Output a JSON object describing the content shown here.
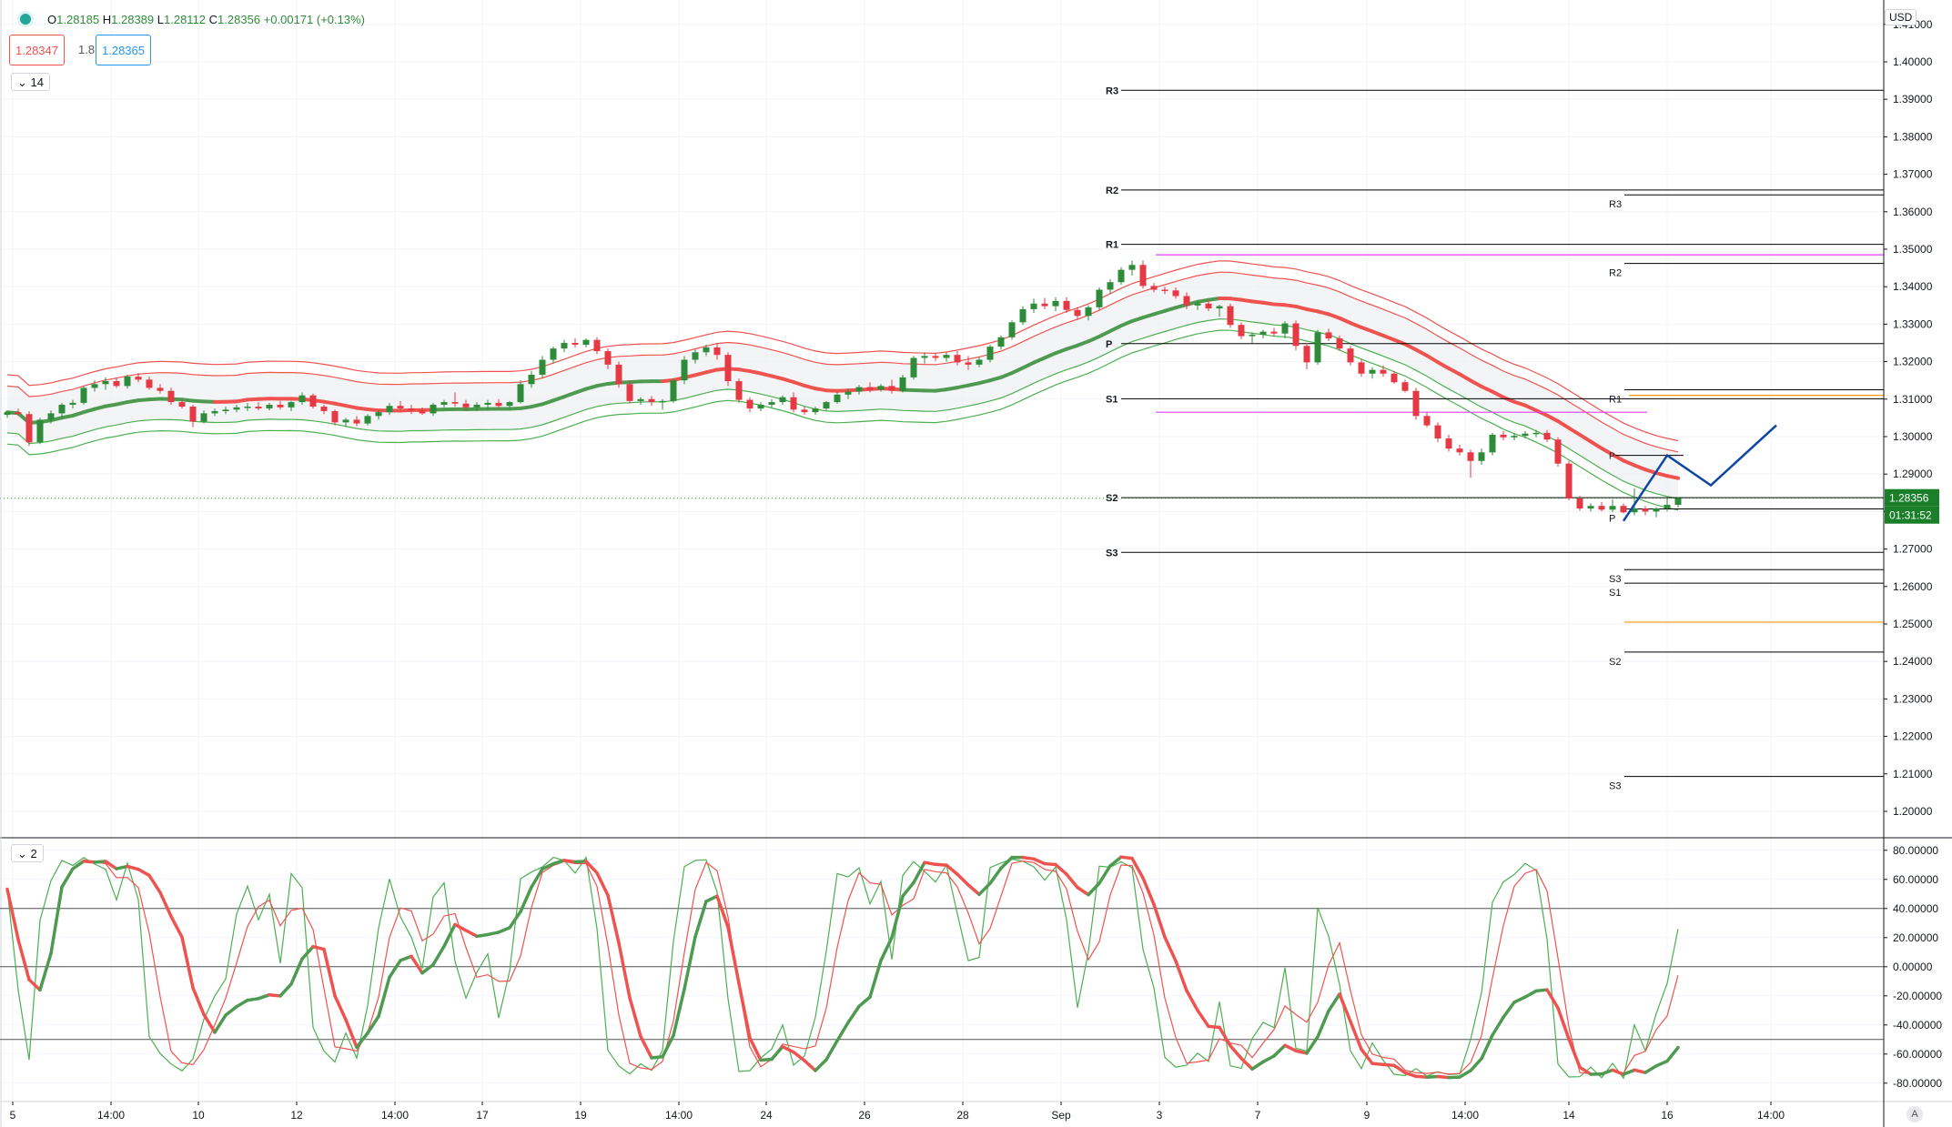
{
  "header": {
    "open_label": "O",
    "open": "1.28185",
    "high_label": "H",
    "high": "1.28389",
    "low_label": "L",
    "low": "1.28112",
    "close_label": "C",
    "close": "1.28356",
    "change": "+0.00171 (+0.13%)"
  },
  "trade": {
    "sell": "1.28347",
    "spread": "1.8",
    "buy": "1.28365"
  },
  "panes": {
    "main_tag": "14",
    "osc_tag": "2"
  },
  "currency": "USD",
  "auto_label": "A",
  "colors": {
    "up": "#2e8b3a",
    "down": "#e53945",
    "ma_green": "#4e9a50",
    "ma_red": "#ef5350",
    "env_red": "#ef5350",
    "env_green": "#4caf50",
    "pivot": "#000000",
    "magenta": "#e040fb",
    "orange": "#ff9800",
    "projection": "#0d47a1",
    "last_price_bg": "#1b7f2a"
  },
  "chart_data": {
    "type": "candlestick",
    "price_axis": {
      "range": [
        1.1932,
        1.4165
      ],
      "ticks": [
        "1.20000",
        "1.21000",
        "1.22000",
        "1.23000",
        "1.24000",
        "1.25000",
        "1.26000",
        "1.27000",
        "1.28000",
        "1.29000",
        "1.30000",
        "1.31000",
        "1.32000",
        "1.33000",
        "1.34000",
        "1.35000",
        "1.36000",
        "1.37000",
        "1.38000",
        "1.39000",
        "1.40000",
        "1.41000"
      ]
    },
    "time_axis": {
      "labels": [
        "5",
        "14:00",
        "10",
        "12",
        "14:00",
        "17",
        "19",
        "14:00",
        "24",
        "26",
        "28",
        "Sep",
        "3",
        "7",
        "9",
        "14:00",
        "14",
        "16",
        "14:00"
      ],
      "positions": [
        0.5,
        9.5,
        17.5,
        26.5,
        35.5,
        43.5,
        52.5,
        61.5,
        69.5,
        78.5,
        87.5,
        96.5,
        105.5,
        114.5,
        124.5,
        133.5,
        143,
        152,
        161.5
      ],
      "slots": 174
    },
    "last_price": "1.28356",
    "countdown": "01:31:52",
    "pivot_levels": {
      "first_set": [
        {
          "name": "R3",
          "value": 1.3924
        },
        {
          "name": "R2",
          "value": 1.3658
        },
        {
          "name": "R1",
          "value": 1.3513
        },
        {
          "name": "P",
          "value": 1.3248
        },
        {
          "name": "S1",
          "value": 1.3101
        },
        {
          "name": "S2",
          "value": 1.2837
        },
        {
          "name": "S3",
          "value": 1.2691
        }
      ],
      "second_set": [
        {
          "name": "R3",
          "value": 1.3645
        },
        {
          "name": "R2",
          "value": 1.3462
        },
        {
          "name": "R1",
          "value": 1.3125
        },
        {
          "name": "P",
          "value": 1.2807
        },
        {
          "name": "S3",
          "value": 1.2645
        },
        {
          "name": "S1",
          "value": 1.2609
        },
        {
          "name": "S2",
          "value": 1.2425
        },
        {
          "name": "S3",
          "value": 1.2093
        }
      ],
      "small_p": {
        "name": "P",
        "value": 1.295
      }
    },
    "candles": [
      [
        1.3058,
        1.3068,
        1.305,
        1.3065
      ],
      [
        1.3065,
        1.3075,
        1.3055,
        1.306
      ],
      [
        1.306,
        1.3068,
        1.2975,
        1.2985
      ],
      [
        1.2985,
        1.305,
        1.298,
        1.3045
      ],
      [
        1.3045,
        1.307,
        1.3035,
        1.3062
      ],
      [
        1.3062,
        1.309,
        1.305,
        1.3085
      ],
      [
        1.3085,
        1.3098,
        1.3075,
        1.309
      ],
      [
        1.309,
        1.3135,
        1.3085,
        1.313
      ],
      [
        1.313,
        1.315,
        1.312,
        1.314
      ],
      [
        1.314,
        1.3158,
        1.3125,
        1.3148
      ],
      [
        1.3148,
        1.3158,
        1.313,
        1.3135
      ],
      [
        1.3135,
        1.3165,
        1.3128,
        1.316
      ],
      [
        1.316,
        1.317,
        1.3145,
        1.3152
      ],
      [
        1.3152,
        1.316,
        1.3125,
        1.313
      ],
      [
        1.313,
        1.314,
        1.3115,
        1.3122
      ],
      [
        1.3122,
        1.313,
        1.3085,
        1.3092
      ],
      [
        1.3092,
        1.3098,
        1.3075,
        1.308
      ],
      [
        1.308,
        1.3085,
        1.3025,
        1.304
      ],
      [
        1.304,
        1.307,
        1.3035,
        1.3062
      ],
      [
        1.3062,
        1.3075,
        1.3055,
        1.3068
      ],
      [
        1.3068,
        1.308,
        1.306,
        1.3072
      ],
      [
        1.3072,
        1.3085,
        1.3065,
        1.3078
      ],
      [
        1.3078,
        1.309,
        1.3068,
        1.308
      ],
      [
        1.308,
        1.3092,
        1.307,
        1.3075
      ],
      [
        1.3075,
        1.309,
        1.307,
        1.3085
      ],
      [
        1.3085,
        1.3095,
        1.3072,
        1.3078
      ],
      [
        1.3078,
        1.3095,
        1.3068,
        1.3092
      ],
      [
        1.3092,
        1.3118,
        1.3085,
        1.311
      ],
      [
        1.311,
        1.3115,
        1.3075,
        1.308
      ],
      [
        1.308,
        1.3085,
        1.306,
        1.3068
      ],
      [
        1.3068,
        1.3072,
        1.303,
        1.3038
      ],
      [
        1.3038,
        1.305,
        1.3025,
        1.3045
      ],
      [
        1.3045,
        1.3055,
        1.3028,
        1.3035
      ],
      [
        1.3035,
        1.306,
        1.303,
        1.3055
      ],
      [
        1.3055,
        1.307,
        1.3045,
        1.3065
      ],
      [
        1.3065,
        1.309,
        1.3058,
        1.3082
      ],
      [
        1.3082,
        1.3095,
        1.307,
        1.3075
      ],
      [
        1.3075,
        1.3085,
        1.306,
        1.307
      ],
      [
        1.307,
        1.3078,
        1.3058,
        1.3062
      ],
      [
        1.3062,
        1.309,
        1.3055,
        1.3085
      ],
      [
        1.3085,
        1.3098,
        1.3078,
        1.3092
      ],
      [
        1.3092,
        1.3118,
        1.308,
        1.3088
      ],
      [
        1.3088,
        1.3098,
        1.307,
        1.3078
      ],
      [
        1.3078,
        1.3092,
        1.3068,
        1.3085
      ],
      [
        1.3085,
        1.3098,
        1.3075,
        1.309
      ],
      [
        1.309,
        1.31,
        1.3075,
        1.3082
      ],
      [
        1.3082,
        1.3095,
        1.3075,
        1.3092
      ],
      [
        1.3092,
        1.315,
        1.3088,
        1.314
      ],
      [
        1.314,
        1.3175,
        1.313,
        1.3165
      ],
      [
        1.3165,
        1.3215,
        1.3155,
        1.3205
      ],
      [
        1.3205,
        1.324,
        1.3195,
        1.3235
      ],
      [
        1.3235,
        1.3258,
        1.3225,
        1.325
      ],
      [
        1.325,
        1.3262,
        1.3238,
        1.3245
      ],
      [
        1.3245,
        1.3262,
        1.3238,
        1.3258
      ],
      [
        1.3258,
        1.3265,
        1.322,
        1.3228
      ],
      [
        1.3228,
        1.3235,
        1.318,
        1.3192
      ],
      [
        1.3192,
        1.32,
        1.313,
        1.314
      ],
      [
        1.314,
        1.315,
        1.3088,
        1.3095
      ],
      [
        1.3095,
        1.3105,
        1.3085,
        1.31
      ],
      [
        1.31,
        1.3108,
        1.3082,
        1.3092
      ],
      [
        1.3092,
        1.31,
        1.3072,
        1.3095
      ],
      [
        1.3095,
        1.3155,
        1.309,
        1.315
      ],
      [
        1.315,
        1.3215,
        1.314,
        1.3205
      ],
      [
        1.3205,
        1.3232,
        1.3195,
        1.3225
      ],
      [
        1.3225,
        1.3245,
        1.3215,
        1.3238
      ],
      [
        1.3238,
        1.325,
        1.3205,
        1.3218
      ],
      [
        1.3218,
        1.3225,
        1.3135,
        1.3148
      ],
      [
        1.3148,
        1.3155,
        1.309,
        1.3098
      ],
      [
        1.3098,
        1.3105,
        1.3065,
        1.3075
      ],
      [
        1.3075,
        1.3092,
        1.3068,
        1.3085
      ],
      [
        1.3085,
        1.31,
        1.3078,
        1.3092
      ],
      [
        1.3092,
        1.311,
        1.3085,
        1.3105
      ],
      [
        1.3105,
        1.3118,
        1.3065,
        1.3072
      ],
      [
        1.3072,
        1.308,
        1.3058,
        1.3065
      ],
      [
        1.3065,
        1.308,
        1.3058,
        1.3075
      ],
      [
        1.3075,
        1.3095,
        1.307,
        1.3092
      ],
      [
        1.3092,
        1.3118,
        1.3088,
        1.3112
      ],
      [
        1.3112,
        1.3128,
        1.31,
        1.312
      ],
      [
        1.312,
        1.3138,
        1.3112,
        1.3132
      ],
      [
        1.3132,
        1.3145,
        1.3118,
        1.3125
      ],
      [
        1.3125,
        1.314,
        1.312,
        1.3135
      ],
      [
        1.3135,
        1.3152,
        1.3115,
        1.3122
      ],
      [
        1.3122,
        1.3165,
        1.3118,
        1.3158
      ],
      [
        1.3158,
        1.3215,
        1.3152,
        1.321
      ],
      [
        1.321,
        1.3225,
        1.3195,
        1.3215
      ],
      [
        1.3215,
        1.3222,
        1.3202,
        1.321
      ],
      [
        1.321,
        1.3225,
        1.32,
        1.3218
      ],
      [
        1.3218,
        1.3228,
        1.319,
        1.3198
      ],
      [
        1.3198,
        1.3215,
        1.3178,
        1.3192
      ],
      [
        1.3192,
        1.3212,
        1.3185,
        1.3205
      ],
      [
        1.3205,
        1.3245,
        1.3198,
        1.324
      ],
      [
        1.324,
        1.327,
        1.3232,
        1.3265
      ],
      [
        1.3265,
        1.331,
        1.3258,
        1.3305
      ],
      [
        1.3305,
        1.3348,
        1.3298,
        1.334
      ],
      [
        1.334,
        1.3368,
        1.333,
        1.3355
      ],
      [
        1.3355,
        1.337,
        1.334,
        1.3348
      ],
      [
        1.3348,
        1.3372,
        1.3335,
        1.3362
      ],
      [
        1.3362,
        1.3372,
        1.333,
        1.3338
      ],
      [
        1.3338,
        1.3345,
        1.3312,
        1.3322
      ],
      [
        1.3322,
        1.335,
        1.331,
        1.3345
      ],
      [
        1.3345,
        1.3398,
        1.3338,
        1.3392
      ],
      [
        1.3392,
        1.342,
        1.338,
        1.3412
      ],
      [
        1.3412,
        1.3452,
        1.3405,
        1.3445
      ],
      [
        1.3445,
        1.347,
        1.343,
        1.3458
      ],
      [
        1.3458,
        1.347,
        1.3395,
        1.3402
      ],
      [
        1.3402,
        1.341,
        1.3385,
        1.3392
      ],
      [
        1.3392,
        1.34,
        1.338,
        1.339
      ],
      [
        1.339,
        1.3398,
        1.3368,
        1.3375
      ],
      [
        1.3375,
        1.3385,
        1.334,
        1.335
      ],
      [
        1.335,
        1.3362,
        1.3338,
        1.3355
      ],
      [
        1.3355,
        1.3365,
        1.3335,
        1.3342
      ],
      [
        1.3342,
        1.3352,
        1.332,
        1.3348
      ],
      [
        1.3348,
        1.3355,
        1.329,
        1.3298
      ],
      [
        1.3298,
        1.3305,
        1.326,
        1.3268
      ],
      [
        1.3268,
        1.3278,
        1.325,
        1.3272
      ],
      [
        1.3272,
        1.3285,
        1.3262,
        1.328
      ],
      [
        1.328,
        1.329,
        1.3268,
        1.3275
      ],
      [
        1.3275,
        1.3308,
        1.3262,
        1.3302
      ],
      [
        1.3302,
        1.331,
        1.323,
        1.3242
      ],
      [
        1.3242,
        1.325,
        1.318,
        1.3198
      ],
      [
        1.3198,
        1.3285,
        1.3192,
        1.3278
      ],
      [
        1.3278,
        1.3288,
        1.3255,
        1.3262
      ],
      [
        1.3262,
        1.327,
        1.3228,
        1.3235
      ],
      [
        1.3235,
        1.3242,
        1.319,
        1.3198
      ],
      [
        1.3198,
        1.3205,
        1.316,
        1.3168
      ],
      [
        1.3168,
        1.3185,
        1.3155,
        1.3178
      ],
      [
        1.3178,
        1.319,
        1.316,
        1.3168
      ],
      [
        1.3168,
        1.3175,
        1.314,
        1.3145
      ],
      [
        1.3145,
        1.3152,
        1.3118,
        1.3122
      ],
      [
        1.3122,
        1.313,
        1.3045,
        1.3055
      ],
      [
        1.3055,
        1.3065,
        1.3025,
        1.303
      ],
      [
        1.303,
        1.3038,
        1.2985,
        1.2995
      ],
      [
        1.2995,
        1.3005,
        1.296,
        1.2968
      ],
      [
        1.2968,
        1.2978,
        1.295,
        1.2958
      ],
      [
        1.2958,
        1.2965,
        1.289,
        1.2935
      ],
      [
        1.2935,
        1.2968,
        1.2925,
        1.2958
      ],
      [
        1.2958,
        1.301,
        1.295,
        1.3005
      ],
      [
        1.3005,
        1.3015,
        1.299,
        1.2998
      ],
      [
        1.2998,
        1.301,
        1.299,
        1.3002
      ],
      [
        1.3002,
        1.3015,
        1.2995,
        1.3008
      ],
      [
        1.3008,
        1.3018,
        1.2998,
        1.301
      ],
      [
        1.301,
        1.3018,
        1.2985,
        1.2992
      ],
      [
        1.2992,
        1.2998,
        1.292,
        1.2928
      ],
      [
        1.2928,
        1.2935,
        1.283,
        1.2835
      ],
      [
        1.2835,
        1.2842,
        1.2802,
        1.2808
      ],
      [
        1.2808,
        1.2822,
        1.28,
        1.2815
      ],
      [
        1.2815,
        1.2825,
        1.28,
        1.2805
      ],
      [
        1.2805,
        1.2832,
        1.2798,
        1.2815
      ],
      [
        1.2815,
        1.2822,
        1.2795,
        1.2798
      ],
      [
        1.2798,
        1.2862,
        1.279,
        1.2808
      ],
      [
        1.2808,
        1.2815,
        1.279,
        1.28
      ],
      [
        1.28,
        1.2812,
        1.2785,
        1.2808
      ],
      [
        1.2808,
        1.2835,
        1.28,
        1.2818
      ],
      [
        1.2818,
        1.2839,
        1.2811,
        1.2836
      ]
    ],
    "oscillator": {
      "axis_ticks": [
        "80.00000",
        "60.00000",
        "40.00000",
        "20.00000",
        "0.00000",
        "-20.00000",
        "-40.00000",
        "-60.00000",
        "-80.00000"
      ],
      "range": [
        -92,
        88
      ],
      "levels": [
        40,
        0,
        -50
      ]
    },
    "projection": [
      [
        148,
        1.2775
      ],
      [
        152,
        1.295
      ],
      [
        156,
        1.287
      ],
      [
        162,
        1.303
      ]
    ]
  }
}
